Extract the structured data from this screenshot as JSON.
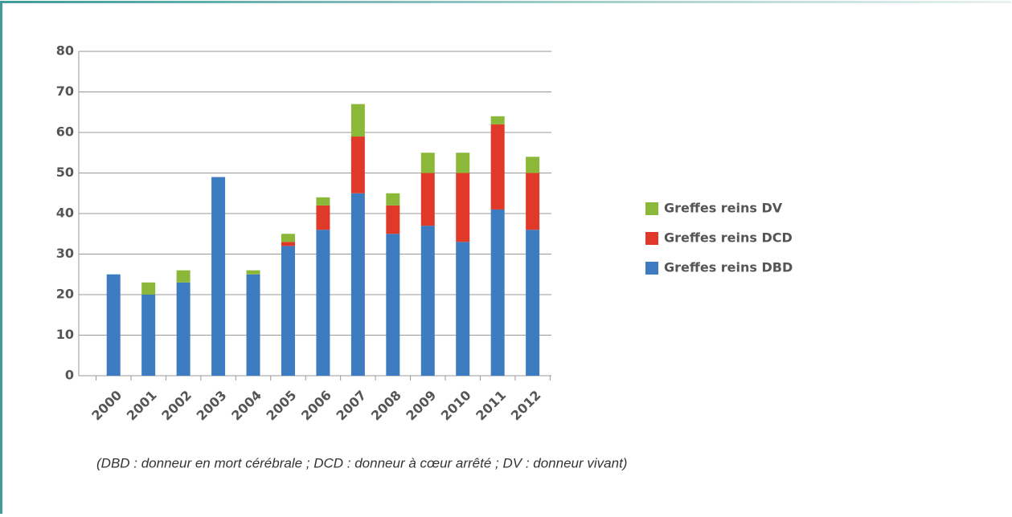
{
  "chart_data": {
    "type": "bar",
    "stacked": true,
    "categories": [
      "2000",
      "2001",
      "2002",
      "2003",
      "2004",
      "2005",
      "2006",
      "2007",
      "2008",
      "2009",
      "2010",
      "2011",
      "2012"
    ],
    "series": [
      {
        "name": "Greffes reins DBD",
        "color": "#3d7cc0",
        "values": [
          25,
          20,
          23,
          49,
          25,
          32,
          36,
          45,
          35,
          37,
          33,
          41,
          36
        ]
      },
      {
        "name": "Greffes reins DCD",
        "color": "#e0392a",
        "values": [
          0,
          0,
          0,
          0,
          0,
          1,
          6,
          14,
          7,
          13,
          17,
          21,
          14
        ]
      },
      {
        "name": "Greffes reins DV",
        "color": "#8cb83a",
        "values": [
          0,
          3,
          3,
          0,
          1,
          2,
          2,
          8,
          3,
          5,
          5,
          2,
          4
        ]
      }
    ],
    "ylim": [
      0,
      80
    ],
    "yticks": [
      0,
      10,
      20,
      30,
      40,
      50,
      60,
      70,
      80
    ],
    "grid": true,
    "legend": "right",
    "note": "(DBD : donneur en mort cérébrale ; DCD : donneur à cœur arrêté ; DV : donneur vivant)"
  }
}
